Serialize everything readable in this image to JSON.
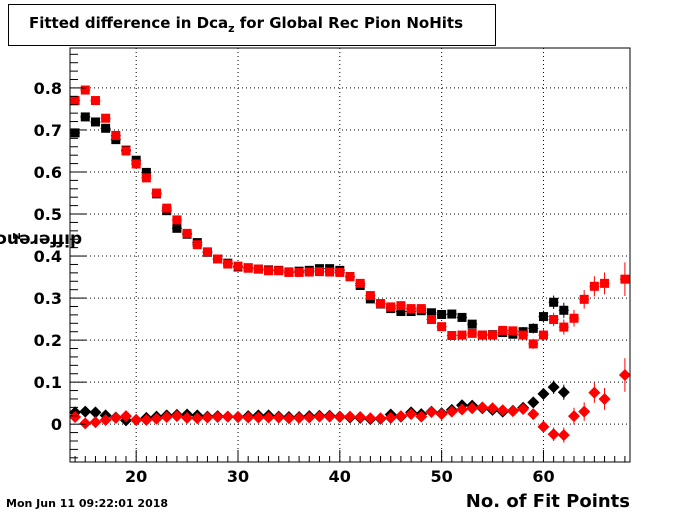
{
  "title": {
    "main": "Fitted difference in Dca",
    "sub": "z",
    "rest": " for Global Rec Pion NoHits"
  },
  "ylabel": {
    "main": "difference in Dca",
    "sub": "z"
  },
  "timestamp": "Mon Jun 11 09:22:01 2018",
  "chart_data": {
    "type": "scatter",
    "title": "Fitted difference in Dca_z for Global Rec Pion NoHits",
    "xlabel": "No. of Fit Points",
    "ylabel": "difference in Dca_z",
    "xlim": [
      13.5,
      68.5
    ],
    "ylim": [
      -0.09,
      0.895
    ],
    "x_ticks": [
      20,
      30,
      40,
      50,
      60
    ],
    "y_ticks": [
      0,
      0.1,
      0.2,
      0.3,
      0.4,
      0.5,
      0.6,
      0.7,
      0.8
    ],
    "x_tick_labels": [
      "20",
      "30",
      "40",
      "50",
      "60"
    ],
    "y_tick_labels": [
      "0",
      "0.1",
      "0.2",
      "0.3",
      "0.4",
      "0.5",
      "0.6",
      "0.7",
      "0.8"
    ],
    "grid": true,
    "colors": {
      "black": "#000000",
      "red": "#ff0000"
    },
    "series": [
      {
        "marker": "square",
        "color": "#000000",
        "points": [
          [
            14,
            0.693
          ],
          [
            15,
            0.731
          ],
          [
            16,
            0.719
          ],
          [
            17,
            0.704
          ],
          [
            18,
            0.677
          ],
          [
            19,
            0.652
          ],
          [
            20,
            0.628
          ],
          [
            21,
            0.599
          ],
          [
            22,
            0.548
          ],
          [
            23,
            0.508
          ],
          [
            24,
            0.466
          ],
          [
            25,
            0.452
          ],
          [
            26,
            0.432
          ],
          [
            27,
            0.409
          ],
          [
            28,
            0.393
          ],
          [
            29,
            0.383
          ],
          [
            30,
            0.374
          ],
          [
            31,
            0.372
          ],
          [
            32,
            0.369
          ],
          [
            33,
            0.367
          ],
          [
            34,
            0.366
          ],
          [
            35,
            0.362
          ],
          [
            36,
            0.364
          ],
          [
            37,
            0.366
          ],
          [
            38,
            0.37
          ],
          [
            39,
            0.37
          ],
          [
            40,
            0.366
          ],
          [
            41,
            0.351
          ],
          [
            42,
            0.33
          ],
          [
            43,
            0.298
          ],
          [
            44,
            0.286
          ],
          [
            45,
            0.275
          ],
          [
            46,
            0.268
          ],
          [
            47,
            0.268
          ],
          [
            48,
            0.27
          ],
          [
            49,
            0.265
          ],
          [
            50,
            0.261
          ],
          [
            51,
            0.262
          ],
          [
            52,
            0.254
          ],
          [
            53,
            0.238
          ],
          [
            54,
            0.212
          ],
          [
            55,
            0.213
          ],
          [
            56,
            0.218
          ],
          [
            57,
            0.214
          ],
          [
            58,
            0.22
          ],
          [
            59,
            0.228
          ],
          [
            60,
            0.256
          ],
          [
            61,
            0.29
          ],
          [
            62,
            0.271
          ]
        ]
      },
      {
        "marker": "square",
        "color": "#ff0000",
        "points": [
          [
            14,
            0.77
          ],
          [
            15,
            0.795
          ],
          [
            16,
            0.77
          ],
          [
            17,
            0.728
          ],
          [
            18,
            0.687
          ],
          [
            19,
            0.65
          ],
          [
            20,
            0.619
          ],
          [
            21,
            0.586
          ],
          [
            22,
            0.55
          ],
          [
            23,
            0.514
          ],
          [
            24,
            0.486
          ],
          [
            25,
            0.454
          ],
          [
            26,
            0.427
          ],
          [
            27,
            0.41
          ],
          [
            28,
            0.393
          ],
          [
            29,
            0.381
          ],
          [
            30,
            0.376
          ],
          [
            31,
            0.371
          ],
          [
            32,
            0.369
          ],
          [
            33,
            0.365
          ],
          [
            34,
            0.365
          ],
          [
            35,
            0.361
          ],
          [
            36,
            0.361
          ],
          [
            37,
            0.362
          ],
          [
            38,
            0.363
          ],
          [
            39,
            0.362
          ],
          [
            40,
            0.361
          ],
          [
            41,
            0.351
          ],
          [
            42,
            0.335
          ],
          [
            43,
            0.306
          ],
          [
            44,
            0.287
          ],
          [
            45,
            0.279
          ],
          [
            46,
            0.282
          ],
          [
            47,
            0.275
          ],
          [
            48,
            0.275
          ],
          [
            49,
            0.249
          ],
          [
            50,
            0.232
          ],
          [
            51,
            0.211
          ],
          [
            52,
            0.212
          ],
          [
            53,
            0.216
          ],
          [
            54,
            0.212
          ],
          [
            55,
            0.212
          ],
          [
            56,
            0.223
          ],
          [
            57,
            0.222
          ],
          [
            58,
            0.212
          ],
          [
            59,
            0.191
          ],
          [
            60,
            0.212
          ],
          [
            61,
            0.249
          ],
          [
            62,
            0.231
          ],
          [
            63,
            0.252
          ],
          [
            64,
            0.297
          ],
          [
            65,
            0.328
          ],
          [
            66,
            0.335
          ],
          [
            68,
            0.345
          ]
        ]
      },
      {
        "marker": "diamond",
        "color": "#000000",
        "points": [
          [
            14,
            0.028
          ],
          [
            15,
            0.03
          ],
          [
            16,
            0.028
          ],
          [
            17,
            0.021
          ],
          [
            18,
            0.016
          ],
          [
            19,
            0.009
          ],
          [
            20,
            0.01
          ],
          [
            21,
            0.015
          ],
          [
            22,
            0.018
          ],
          [
            23,
            0.021
          ],
          [
            24,
            0.022
          ],
          [
            25,
            0.023
          ],
          [
            26,
            0.021
          ],
          [
            27,
            0.018
          ],
          [
            28,
            0.019
          ],
          [
            29,
            0.018
          ],
          [
            30,
            0.017
          ],
          [
            31,
            0.019
          ],
          [
            32,
            0.021
          ],
          [
            33,
            0.021
          ],
          [
            34,
            0.018
          ],
          [
            35,
            0.017
          ],
          [
            36,
            0.017
          ],
          [
            37,
            0.019
          ],
          [
            38,
            0.02
          ],
          [
            39,
            0.02
          ],
          [
            40,
            0.018
          ],
          [
            41,
            0.016
          ],
          [
            42,
            0.015
          ],
          [
            43,
            0.012
          ],
          [
            44,
            0.013
          ],
          [
            45,
            0.023
          ],
          [
            46,
            0.018
          ],
          [
            47,
            0.028
          ],
          [
            48,
            0.024
          ],
          [
            49,
            0.03
          ],
          [
            50,
            0.026
          ],
          [
            51,
            0.034
          ],
          [
            52,
            0.045
          ],
          [
            53,
            0.044
          ],
          [
            54,
            0.038
          ],
          [
            55,
            0.034
          ],
          [
            56,
            0.03
          ],
          [
            57,
            0.032
          ],
          [
            58,
            0.039
          ],
          [
            59,
            0.052
          ],
          [
            60,
            0.072
          ],
          [
            61,
            0.088
          ],
          [
            62,
            0.076
          ]
        ]
      },
      {
        "marker": "diamond",
        "color": "#ff0000",
        "points": [
          [
            14,
            0.017
          ],
          [
            15,
            0.002
          ],
          [
            16,
            0.005
          ],
          [
            17,
            0.01
          ],
          [
            18,
            0.015
          ],
          [
            19,
            0.019
          ],
          [
            20,
            0.01
          ],
          [
            21,
            0.01
          ],
          [
            22,
            0.013
          ],
          [
            23,
            0.017
          ],
          [
            24,
            0.019
          ],
          [
            25,
            0.015
          ],
          [
            26,
            0.014
          ],
          [
            27,
            0.016
          ],
          [
            28,
            0.017
          ],
          [
            29,
            0.018
          ],
          [
            30,
            0.017
          ],
          [
            31,
            0.016
          ],
          [
            32,
            0.016
          ],
          [
            33,
            0.016
          ],
          [
            34,
            0.016
          ],
          [
            35,
            0.014
          ],
          [
            36,
            0.015
          ],
          [
            37,
            0.016
          ],
          [
            38,
            0.018
          ],
          [
            39,
            0.018
          ],
          [
            40,
            0.017
          ],
          [
            41,
            0.018
          ],
          [
            42,
            0.017
          ],
          [
            43,
            0.014
          ],
          [
            44,
            0.014
          ],
          [
            45,
            0.015
          ],
          [
            46,
            0.019
          ],
          [
            47,
            0.024
          ],
          [
            48,
            0.018
          ],
          [
            49,
            0.029
          ],
          [
            50,
            0.024
          ],
          [
            51,
            0.03
          ],
          [
            52,
            0.035
          ],
          [
            53,
            0.038
          ],
          [
            54,
            0.04
          ],
          [
            55,
            0.038
          ],
          [
            56,
            0.033
          ],
          [
            57,
            0.031
          ],
          [
            58,
            0.036
          ],
          [
            59,
            0.024
          ],
          [
            60,
            -0.006
          ],
          [
            61,
            -0.024
          ],
          [
            62,
            -0.026
          ],
          [
            63,
            0.019
          ],
          [
            64,
            0.03
          ],
          [
            65,
            0.075
          ],
          [
            66,
            0.06
          ],
          [
            68,
            0.117
          ]
        ]
      }
    ],
    "errors": {
      "48": 0.006,
      "49": 0.008,
      "50": 0.008,
      "51": 0.008,
      "52": 0.008,
      "53": 0.008,
      "54": 0.009,
      "55": 0.009,
      "56": 0.01,
      "57": 0.01,
      "58": 0.011,
      "59": 0.012,
      "60": 0.014,
      "61": 0.016,
      "62": 0.018,
      "63": 0.02,
      "64": 0.022,
      "65": 0.024,
      "66": 0.026,
      "68": 0.04
    }
  }
}
